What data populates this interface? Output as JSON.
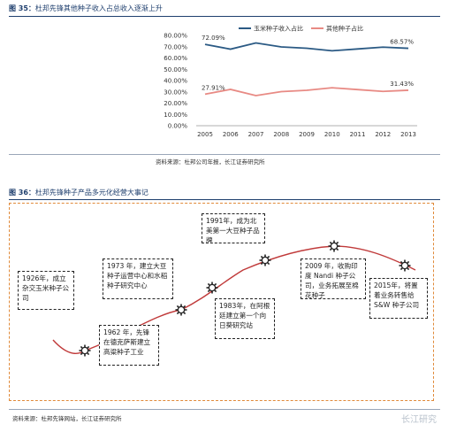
{
  "figure35": {
    "title_num": "图 35：",
    "title_text": "杜邦先锋其他种子收入占总收入逐渐上升",
    "source": "资料来源：杜邦公司年报，长江证券研究所"
  },
  "chart_data": {
    "type": "line",
    "x": [
      "2005",
      "2006",
      "2007",
      "2008",
      "2009",
      "2010",
      "2011",
      "2012",
      "2013"
    ],
    "series": [
      {
        "name": "玉米种子收入占比",
        "color": "#2b5a84",
        "values": [
          72.09,
          67.8,
          73.3,
          69.8,
          68.6,
          66.4,
          68.0,
          69.6,
          68.57
        ]
      },
      {
        "name": "其他种子占比",
        "color": "#e88a84",
        "values": [
          27.91,
          32.2,
          26.7,
          30.2,
          31.4,
          33.6,
          32.0,
          30.4,
          31.43
        ]
      }
    ],
    "ylim": [
      0,
      80
    ],
    "yticks": [
      "0.00%",
      "10.00%",
      "20.00%",
      "30.00%",
      "40.00%",
      "50.00%",
      "60.00%",
      "70.00%",
      "80.00%"
    ],
    "data_labels": {
      "first": [
        "72.09%",
        "27.91%"
      ],
      "last": [
        "68.57%",
        "31.43%"
      ]
    },
    "legend_position": "top-center",
    "grid": false
  },
  "figure36": {
    "title_num": "图 36：",
    "title_text": "杜邦先锋种子产品多元化经营大事记",
    "source": "资料来源：杜邦先锋网站，长江证券研究所",
    "events": [
      {
        "text": "1926年，成立杂交玉米种子公司"
      },
      {
        "text": "1962 年，先锋在德克萨斯建立高粱种子工业"
      },
      {
        "text": "1973 年，建立大豆种子运营中心和水稻种子研究中心"
      },
      {
        "text": "1983年，在阿根廷建立第一个向日葵研究站"
      },
      {
        "text": "1991年，成为北美第一大豆种子品牌"
      },
      {
        "text": "2009 年，收购印度 Nandi 种子公司，业务拓展至棉花种子"
      },
      {
        "text": "2015年，将置着业务转售给S&W 种子公司"
      }
    ]
  },
  "watermark": "长江研究"
}
